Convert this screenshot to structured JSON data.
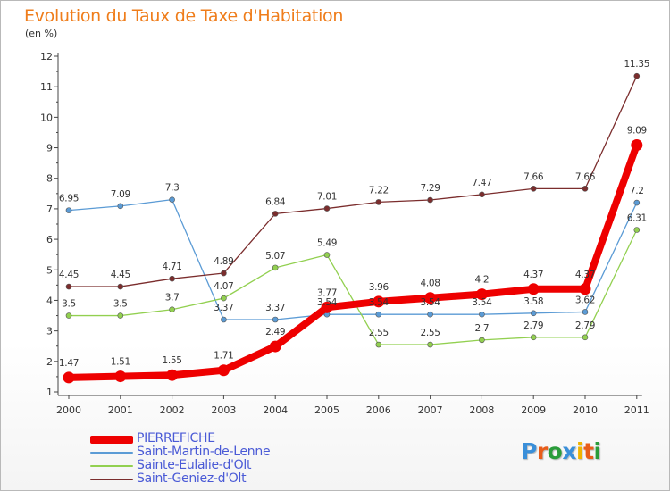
{
  "title": "Evolution du Taux de Taxe d'Habitation",
  "unit": "(en %)",
  "logo": {
    "text": "Proxiti",
    "colors": [
      "#3a8fd9",
      "#e85d1a",
      "#2a9c3a",
      "#3a8fd9",
      "#f0b400",
      "#e85d1a",
      "#2a9c3a"
    ]
  },
  "chart_data": {
    "type": "line",
    "title": "Evolution du Taux de Taxe d'Habitation",
    "ylabel": "(en %)",
    "x": [
      "2000",
      "2001",
      "2002",
      "2003",
      "2004",
      "2005",
      "2006",
      "2007",
      "2008",
      "2009",
      "2010",
      "2011"
    ],
    "ylim": [
      1,
      12
    ],
    "yticks": [
      "1",
      "2",
      "3",
      "4",
      "5",
      "6",
      "7",
      "8",
      "9",
      "10",
      "11",
      "12"
    ],
    "grid": false,
    "legend_position": "bottom-left",
    "series": [
      {
        "name": "PIERREFICHE",
        "color": "#ee0000",
        "values": [
          1.47,
          1.51,
          1.55,
          1.71,
          2.49,
          3.77,
          3.96,
          4.08,
          4.2,
          4.37,
          4.37,
          9.09
        ],
        "labels": [
          "1.47",
          "1.51",
          "1.55",
          "1.71",
          "2.49",
          "3.77",
          "3.96",
          "4.08",
          "4.2",
          "4.37",
          "4.37",
          "9.09"
        ]
      },
      {
        "name": "Saint-Martin-de-Lenne",
        "color": "#5b9bd5",
        "values": [
          6.95,
          7.09,
          7.3,
          3.37,
          3.37,
          3.54,
          3.54,
          3.54,
          3.54,
          3.58,
          3.62,
          7.2
        ],
        "labels": [
          "6.95",
          "7.09",
          "7.3",
          "3.37",
          "3.37",
          "3.54",
          "3.54",
          "3.54",
          "3.54",
          "3.58",
          "3.62",
          "7.2"
        ]
      },
      {
        "name": "Sainte-Eulalie-d'Olt",
        "color": "#92d050",
        "values": [
          3.5,
          3.5,
          3.7,
          4.07,
          5.07,
          5.49,
          2.55,
          2.55,
          2.7,
          2.79,
          2.79,
          6.31
        ],
        "labels": [
          "3.5",
          "3.5",
          "3.7",
          "4.07",
          "5.07",
          "5.49",
          "2.55",
          "2.55",
          "2.7",
          "2.79",
          "2.79",
          "6.31"
        ]
      },
      {
        "name": "Saint-Geniez-d'Olt",
        "color": "#7b2d2d",
        "values": [
          4.45,
          4.45,
          4.71,
          4.89,
          6.84,
          7.01,
          7.22,
          7.29,
          7.47,
          7.66,
          7.66,
          11.35
        ],
        "labels": [
          "4.45",
          "4.45",
          "4.71",
          "4.89",
          "6.84",
          "7.01",
          "7.22",
          "7.29",
          "7.47",
          "7.66",
          "7.66",
          "11.35"
        ]
      }
    ]
  }
}
